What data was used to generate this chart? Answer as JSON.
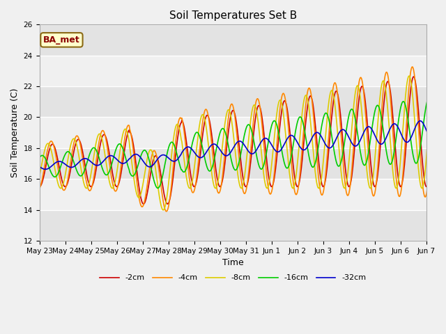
{
  "title": "Soil Temperatures Set B",
  "xlabel": "Time",
  "ylabel": "Soil Temperature (C)",
  "annotation": "BA_met",
  "ylim": [
    12,
    26
  ],
  "yticks": [
    12,
    14,
    16,
    18,
    20,
    22,
    24,
    26
  ],
  "plot_bg_color": "#f0f0f0",
  "fig_bg_color": "#f0f0f0",
  "series": [
    {
      "label": "-2cm",
      "color": "#cc0000",
      "lw": 1.2
    },
    {
      "label": "-4cm",
      "color": "#ff8800",
      "lw": 1.2
    },
    {
      "label": "-8cm",
      "color": "#ddcc00",
      "lw": 1.2
    },
    {
      "label": "-16cm",
      "color": "#00cc00",
      "lw": 1.2
    },
    {
      "label": "-32cm",
      "color": "#0000cc",
      "lw": 1.2
    }
  ],
  "x_tick_labels": [
    "May 23",
    "May 24",
    "May 25",
    "May 26",
    "May 27",
    "May 28",
    "May 29",
    "May 30",
    "May 31",
    "Jun 1",
    "Jun 2",
    "Jun 3",
    "Jun 4",
    "Jun 5",
    "Jun 6",
    "Jun 7"
  ],
  "n_days": 16,
  "pts_per_day": 48,
  "grid_color": "#ffffff",
  "title_fontsize": 11,
  "axis_fontsize": 9,
  "tick_fontsize": 7.5,
  "legend_fontsize": 8
}
